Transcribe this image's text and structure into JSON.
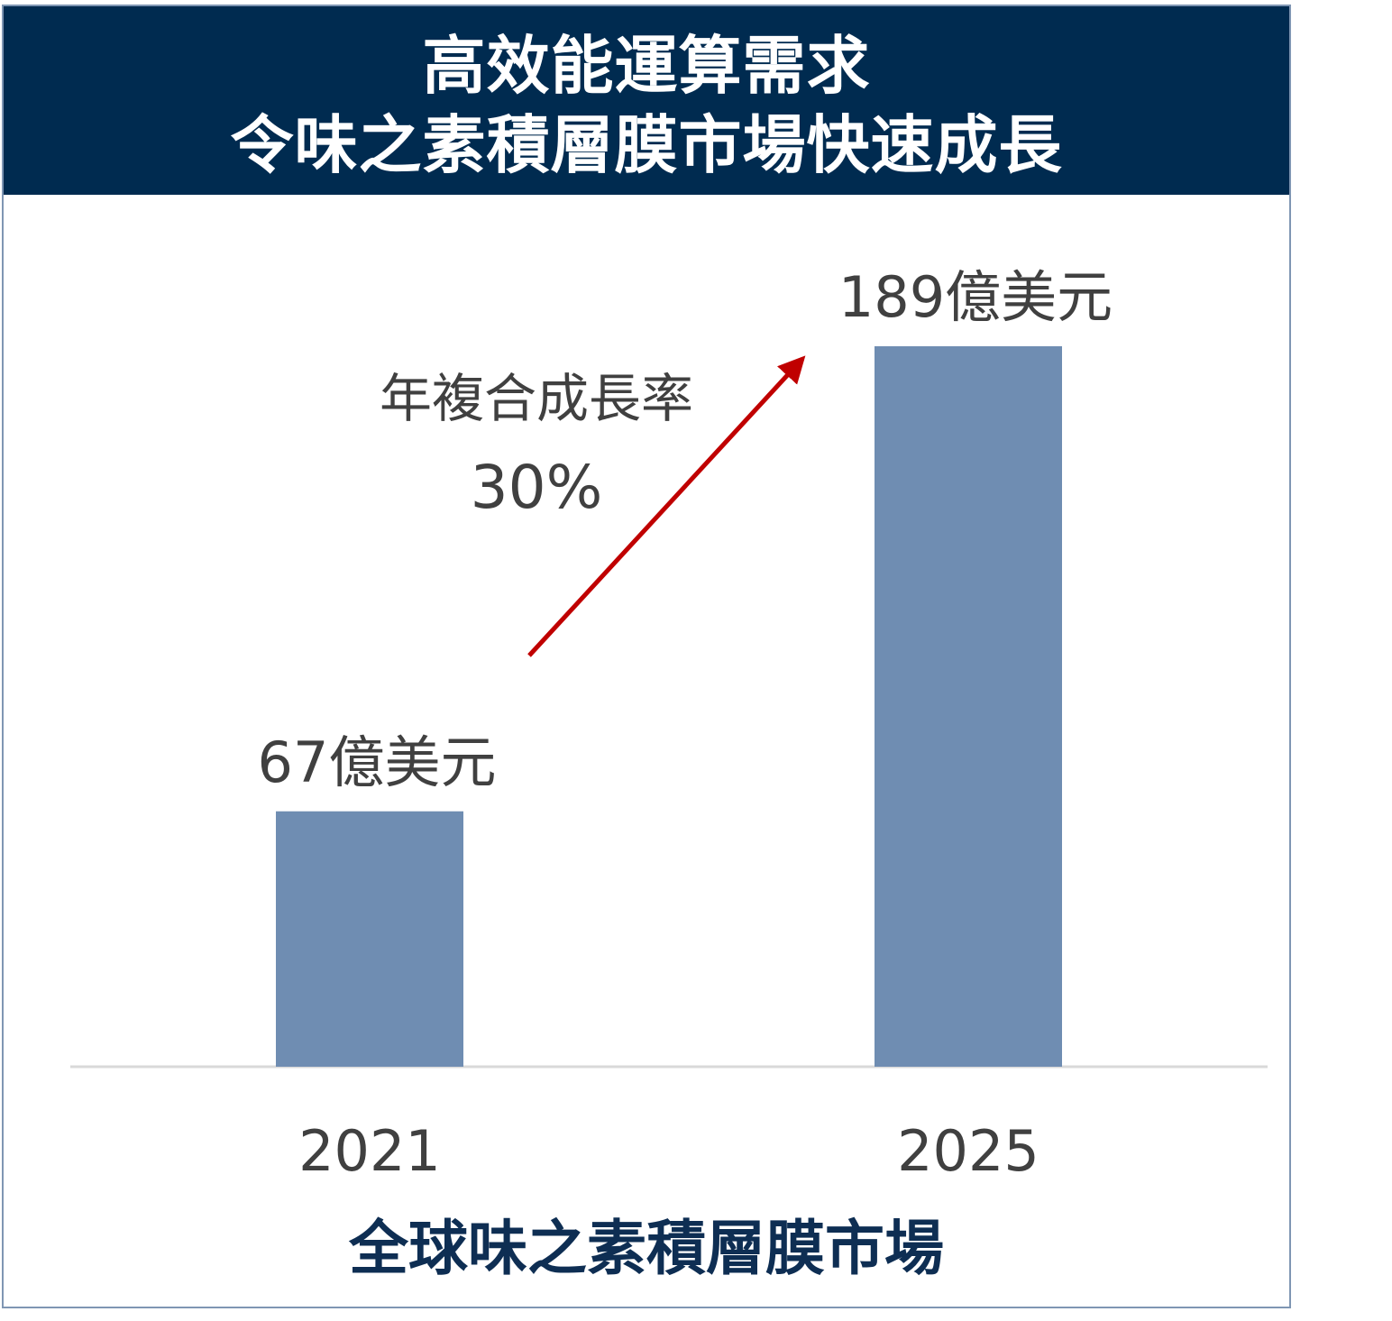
{
  "chart_data": {
    "type": "bar",
    "title": "高效能運算需求\n令味之素積層膜市場快速成長",
    "title_lines": [
      "高效能運算需求",
      "令味之素積層膜市場快速成長"
    ],
    "categories": [
      "2021",
      "2025"
    ],
    "values": [
      67,
      189
    ],
    "data_labels": [
      "67億美元",
      "189億美元"
    ],
    "unit": "億美元",
    "annotation": {
      "label": "年複合成長率",
      "value": "30%"
    },
    "xlabel": "全球味之素積層膜市場",
    "ylabel": "",
    "ylim": [
      0,
      189
    ],
    "grid": false,
    "bar_color": "#6f8db2",
    "arrow_color": "#c00000",
    "header_color": "#002b50"
  }
}
